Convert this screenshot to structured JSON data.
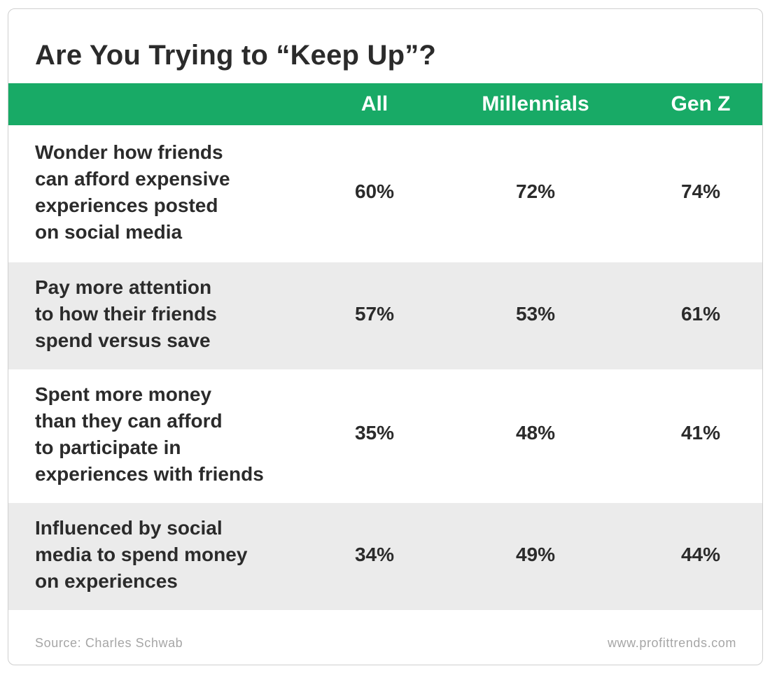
{
  "title": "Are You Trying to “Keep Up”?",
  "colors": {
    "header_bg": "#18aa66",
    "header_text": "#ffffff",
    "shaded_row": "#ebebeb",
    "text": "#2b2b2b",
    "footer_text": "#a6a6a6"
  },
  "chart_data": {
    "type": "table",
    "title": "Are You Trying to “Keep Up”?",
    "columns": [
      "All",
      "Millennials",
      "Gen Z"
    ],
    "rows": [
      {
        "label": "Wonder how friends\ncan afford expensive\nexperiences posted\non social media",
        "values": [
          "60%",
          "72%",
          "74%"
        ]
      },
      {
        "label": "Pay more attention\nto how their friends\nspend versus save",
        "values": [
          "57%",
          "53%",
          "61%"
        ]
      },
      {
        "label": "Spent more money\nthan they can afford\nto participate in\nexperiences with friends",
        "values": [
          "35%",
          "48%",
          "41%"
        ]
      },
      {
        "label": "Influenced by social\nmedia to spend money\non experiences",
        "values": [
          "34%",
          "49%",
          "44%"
        ]
      }
    ]
  },
  "footer": {
    "source": "Source: Charles Schwab",
    "site": "www.profittrends.com"
  }
}
